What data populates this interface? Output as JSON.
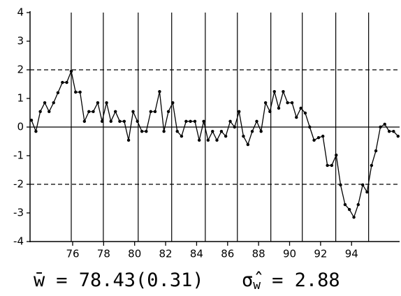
{
  "chart_data": {
    "type": "line",
    "x": [
      73.34,
      73.63,
      73.91,
      74.2,
      74.48,
      74.77,
      75.05,
      75.34,
      75.62,
      75.91,
      76.19,
      76.48,
      76.76,
      77.05,
      77.33,
      77.62,
      77.9,
      78.19,
      78.47,
      78.76,
      79.04,
      79.33,
      79.61,
      79.9,
      80.18,
      80.47,
      80.75,
      81.04,
      81.32,
      81.61,
      81.89,
      82.18,
      82.46,
      82.75,
      83.03,
      83.32,
      83.6,
      83.89,
      84.17,
      84.46,
      84.74,
      85.03,
      85.31,
      85.6,
      85.88,
      86.17,
      86.45,
      86.74,
      87.02,
      87.31,
      87.59,
      87.88,
      88.16,
      88.45,
      88.73,
      89.02,
      89.3,
      89.59,
      89.87,
      90.16,
      90.44,
      90.73,
      91.01,
      91.3,
      91.58,
      91.87,
      92.15,
      92.44,
      92.72,
      93.01,
      93.29,
      93.58,
      93.86,
      94.15,
      94.43,
      94.72,
      95.0,
      95.29,
      95.57,
      95.86,
      96.14,
      96.43,
      96.71,
      97.0
    ],
    "values": [
      0.24,
      -0.15,
      0.54,
      0.85,
      0.54,
      0.85,
      1.2,
      1.56,
      1.56,
      1.95,
      1.22,
      1.22,
      0.2,
      0.54,
      0.54,
      0.85,
      0.2,
      0.85,
      0.2,
      0.54,
      0.2,
      0.2,
      -0.46,
      0.54,
      0.2,
      -0.15,
      -0.15,
      0.54,
      0.54,
      1.24,
      -0.15,
      0.54,
      0.85,
      -0.15,
      -0.32,
      0.2,
      0.2,
      0.2,
      -0.46,
      0.2,
      -0.46,
      -0.15,
      -0.46,
      -0.15,
      -0.32,
      0.2,
      0,
      0.54,
      -0.32,
      -0.61,
      -0.15,
      0.2,
      -0.15,
      0.85,
      0.54,
      1.24,
      0.66,
      1.24,
      0.85,
      0.85,
      0.34,
      0.66,
      0.49,
      0,
      -0.46,
      -0.37,
      -0.32,
      -1.34,
      -1.34,
      -0.98,
      -2.02,
      -2.71,
      -2.88,
      -3.15,
      -2.71,
      -2.02,
      -2.27,
      -1.34,
      -0.83,
      0,
      0.1,
      -0.15,
      -0.15,
      -0.32
    ],
    "color": "#000000",
    "xlim": [
      73.25,
      97.1
    ],
    "ylim": [
      -4,
      4
    ],
    "xticks": [
      76,
      78,
      80,
      82,
      84,
      86,
      88,
      90,
      92,
      94
    ],
    "yticks": [
      -4,
      -3,
      -2,
      -1,
      0,
      1,
      2,
      3,
      4
    ],
    "vertical_lines": [
      75.91,
      77.98,
      80.23,
      82.39,
      84.56,
      86.63,
      88.79,
      90.82,
      92.98,
      95.1
    ],
    "hlines": [
      0
    ],
    "dashed_hlines": [
      2,
      -2
    ],
    "annotations": [
      {
        "symbol": "w̄",
        "text": "= 78.43(0.31)"
      },
      {
        "symbol": "σ̂",
        "subscript": "w",
        "text": "= 2.88"
      }
    ]
  }
}
